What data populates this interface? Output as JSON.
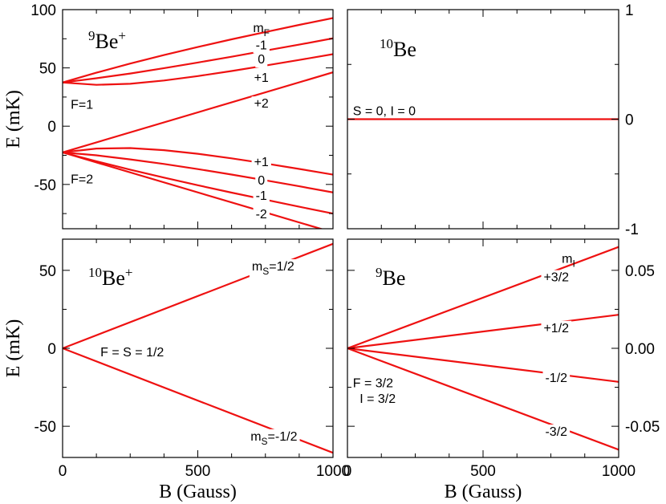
{
  "chart_data": [
    {
      "panel": "top-left",
      "type": "line",
      "title": {
        "pre": "9",
        "main": "Be",
        "post": "+"
      },
      "ylabel": "E (mK)",
      "xlim": [
        0,
        1000
      ],
      "ylim": [
        -88,
        100
      ],
      "yticks": [
        {
          "v": -50,
          "label": "-50"
        },
        {
          "v": 0,
          "label": "0"
        },
        {
          "v": 50,
          "label": "50"
        },
        {
          "v": 100,
          "label": "100"
        }
      ],
      "ytick_side": "left",
      "x_ticklabels": false,
      "series": [
        {
          "x": [
            0,
            125,
            250,
            375,
            500,
            625,
            750,
            875,
            1000
          ],
          "y": [
            37.5,
            45.9,
            53.7,
            61.0,
            67.9,
            74.5,
            80.8,
            86.9,
            92.8
          ]
        },
        {
          "x": [
            0,
            125,
            250,
            375,
            500,
            625,
            750,
            875,
            1000
          ],
          "y": [
            37.5,
            41.1,
            45.2,
            49.8,
            54.6,
            59.6,
            64.8,
            70.0,
            75.4
          ]
        },
        {
          "x": [
            0,
            125,
            250,
            375,
            500,
            625,
            750,
            875,
            1000
          ],
          "y": [
            37.5,
            35.5,
            36.4,
            39.2,
            43.0,
            47.3,
            52.0,
            56.8,
            61.8
          ]
        },
        {
          "x": [
            0,
            1000
          ],
          "y": [
            -22.5,
            46.2
          ]
        },
        {
          "x": [
            0,
            125,
            250,
            375,
            500,
            625,
            750,
            875,
            1000
          ],
          "y": [
            -22.5,
            -19.2,
            -18.8,
            -20.6,
            -23.7,
            -27.6,
            -32.0,
            -36.7,
            -41.6
          ]
        },
        {
          "x": [
            0,
            125,
            250,
            375,
            500,
            625,
            750,
            875,
            1000
          ],
          "y": [
            -22.5,
            -25.0,
            -28.5,
            -32.4,
            -36.8,
            -41.5,
            -46.5,
            -51.6,
            -56.9
          ]
        },
        {
          "x": [
            0,
            125,
            250,
            375,
            500,
            625,
            750,
            875,
            1000
          ],
          "y": [
            -22.5,
            -30.1,
            -37.3,
            -44.1,
            -50.7,
            -57.0,
            -63.1,
            -69.1,
            -75.0
          ]
        },
        {
          "x": [
            0,
            1000
          ],
          "y": [
            -22.5,
            -91.2
          ]
        }
      ],
      "annotations": [
        {
          "text": "m",
          "sub": "F",
          "x": 735,
          "y": 85,
          "anchor": "middle"
        },
        {
          "text": "-1",
          "x": 735,
          "y": 70,
          "anchor": "middle",
          "bg": true
        },
        {
          "text": "0",
          "x": 735,
          "y": 58,
          "anchor": "middle",
          "bg": true
        },
        {
          "text": "+1",
          "x": 735,
          "y": 42,
          "anchor": "middle",
          "bg": true
        },
        {
          "text": "+2",
          "x": 735,
          "y": 20,
          "anchor": "middle",
          "bg": true
        },
        {
          "text": "F=1",
          "x": 30,
          "y": 19,
          "anchor": "start"
        },
        {
          "text": "+1",
          "x": 735,
          "y": -30,
          "anchor": "middle",
          "bg": true
        },
        {
          "text": "0",
          "x": 735,
          "y": -46,
          "anchor": "middle",
          "bg": true
        },
        {
          "text": "-1",
          "x": 735,
          "y": -59,
          "anchor": "middle",
          "bg": true
        },
        {
          "text": "-2",
          "x": 735,
          "y": -75,
          "anchor": "middle",
          "bg": true
        },
        {
          "text": "F=2",
          "x": 30,
          "y": -45,
          "anchor": "start"
        }
      ]
    },
    {
      "panel": "top-right",
      "type": "line",
      "title": {
        "pre": "10",
        "main": "Be",
        "post": ""
      },
      "xlim": [
        0,
        1000
      ],
      "ylim": [
        -1,
        1
      ],
      "yticks": [
        {
          "v": -1,
          "label": "-1"
        },
        {
          "v": 0,
          "label": "0"
        },
        {
          "v": 1,
          "label": "1"
        }
      ],
      "ytick_side": "right",
      "x_ticklabels": false,
      "series": [
        {
          "x": [
            0,
            1000
          ],
          "y": [
            0,
            0
          ]
        }
      ],
      "annotations": [
        {
          "text": "S = 0, I = 0",
          "x": 20,
          "y": 0.08,
          "anchor": "start"
        }
      ]
    },
    {
      "panel": "bottom-left",
      "type": "line",
      "title": {
        "pre": "10",
        "main": "Be",
        "post": "+"
      },
      "ylabel": "E (mK)",
      "xlabel": "B (Gauss)",
      "xlim": [
        0,
        1000
      ],
      "ylim": [
        -70,
        70
      ],
      "yticks": [
        {
          "v": -50,
          "label": "-50"
        },
        {
          "v": 0,
          "label": "0"
        },
        {
          "v": 50,
          "label": "50"
        }
      ],
      "ytick_side": "left",
      "xticks": [
        {
          "v": 0,
          "label": "0"
        },
        {
          "v": 500,
          "label": "500"
        },
        {
          "v": 1000,
          "label": "1000"
        }
      ],
      "x_ticklabels": true,
      "series": [
        {
          "x": [
            0,
            1000
          ],
          "y": [
            0,
            67
          ]
        },
        {
          "x": [
            0,
            1000
          ],
          "y": [
            0,
            -67
          ]
        }
      ],
      "annotations": [
        {
          "text": "m",
          "sub": "S",
          "tail": "=1/2",
          "x": 700,
          "y": 53,
          "anchor": "start",
          "bg": true
        },
        {
          "text": "F = S = 1/2",
          "x": 140,
          "y": -2,
          "anchor": "start"
        },
        {
          "text": "m",
          "sub": "S",
          "tail": "=-1/2",
          "x": 695,
          "y": -56,
          "anchor": "start",
          "bg": true
        }
      ]
    },
    {
      "panel": "bottom-right",
      "type": "line",
      "title": {
        "pre": "9",
        "main": "Be",
        "post": ""
      },
      "xlabel": "B (Gauss)",
      "xlim": [
        0,
        1000
      ],
      "ylim": [
        -0.07,
        0.07
      ],
      "yticks": [
        {
          "v": -0.05,
          "label": "-0.05"
        },
        {
          "v": 0,
          "label": "0.00"
        },
        {
          "v": 0.05,
          "label": "0.05"
        }
      ],
      "ytick_side": "right",
      "xticks": [
        {
          "v": 0,
          "label": "0"
        },
        {
          "v": 500,
          "label": "500"
        },
        {
          "v": 1000,
          "label": "1000"
        }
      ],
      "x_ticklabels": true,
      "series": [
        {
          "x": [
            0,
            1000
          ],
          "y": [
            0,
            0.065
          ]
        },
        {
          "x": [
            0,
            1000
          ],
          "y": [
            0,
            0.0215
          ]
        },
        {
          "x": [
            0,
            1000
          ],
          "y": [
            0,
            -0.0215
          ]
        },
        {
          "x": [
            0,
            1000
          ],
          "y": [
            0,
            -0.065
          ]
        }
      ],
      "annotations": [
        {
          "text": "m",
          "sub": "I",
          "x": 815,
          "y": 0.058,
          "anchor": "middle"
        },
        {
          "text": "+3/2",
          "x": 770,
          "y": 0.046,
          "anchor": "middle",
          "bg": true
        },
        {
          "text": "+1/2",
          "x": 770,
          "y": 0.0135,
          "anchor": "middle",
          "bg": true
        },
        {
          "text": "-1/2",
          "x": 770,
          "y": -0.0185,
          "anchor": "middle",
          "bg": true
        },
        {
          "text": "-3/2",
          "x": 770,
          "y": -0.053,
          "anchor": "middle",
          "bg": true
        },
        {
          "text": "F = 3/2",
          "x": 20,
          "y": -0.022,
          "anchor": "start"
        },
        {
          "text": "I = 3/2",
          "x": 45,
          "y": -0.032,
          "anchor": "start"
        }
      ]
    }
  ]
}
